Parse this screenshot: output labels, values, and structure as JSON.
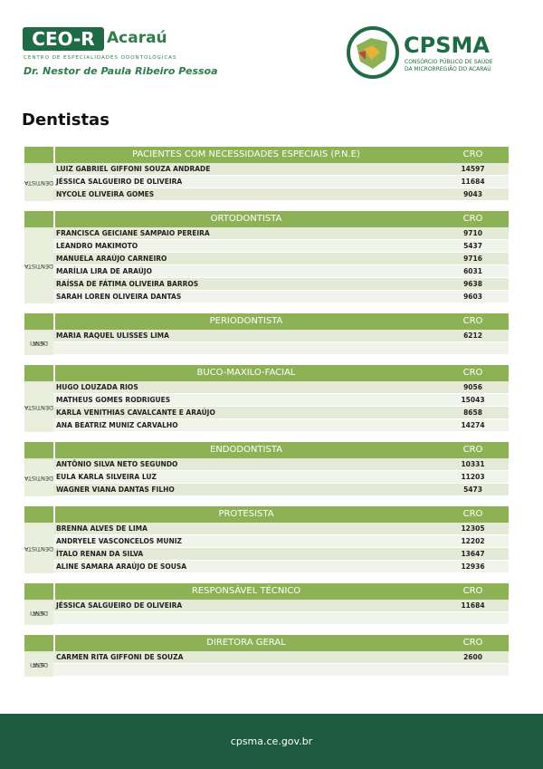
{
  "header": {
    "ceo_box": "CEO-R",
    "ceo_city": "Acaraú",
    "ceo_sub": "CENTRO DE ESPECIALIDADES ODONTOLÓGICAS",
    "ceo_name": "Dr. Nestor de Paula Ribeiro Pessoa",
    "cpsma_title": "CPSMA",
    "cpsma_sub1": "CONSÓRCIO PÚBLICO DE SAÚDE",
    "cpsma_sub2": "DA MICRORREGIÃO DO ACARAÚ"
  },
  "page_title": "Dentistas",
  "sections": [
    {
      "title": "PACIENTES COM NECESSIDADES ESPECIAIS (P.N.E)",
      "cro": "CRO",
      "side": [
        "DENTISTA"
      ],
      "rows": [
        {
          "name": "LUIZ GABRIEL GIFFONI SOUZA ANDRADE",
          "cro": 14597
        },
        {
          "name": "JÉSSICA SALGUEIRO DE OLIVEIRA",
          "cro": 11684
        },
        {
          "name": "NYCOLE OLIVEIRA GOMES",
          "cro": 9043
        }
      ]
    },
    {
      "title": "ORTODONTISTA",
      "cro": "CRO",
      "side": [
        "DENTISTA"
      ],
      "rows": [
        {
          "name": "FRANCISCA GEICIANE SAMPAIO PEREIRA",
          "cro": 9710
        },
        {
          "name": "LEANDRO MAKIMOTO",
          "cro": 5437
        },
        {
          "name": "MANUELA ARAÚJO CARNEIRO",
          "cro": 9716
        },
        {
          "name": "MARÍLIA LIRA DE ARAÚJO",
          "cro": 6031
        },
        {
          "name": "RAÍSSA DE FÁTIMA OLIVEIRA BARROS",
          "cro": 9638
        },
        {
          "name": "SARAH LOREN OLIVEIRA DANTAS",
          "cro": 9603
        }
      ]
    },
    {
      "title": "PERIODONTISTA",
      "cro": "CRO",
      "side": [
        "DENTI",
        "STA"
      ],
      "rows": [
        {
          "name": "MARIA RAQUEL ULISSES LIMA",
          "cro": 6212
        }
      ]
    },
    {
      "title": "BUCO-MAXILO-FACIAL",
      "cro": "CRO",
      "side": [
        "DENTISTA"
      ],
      "rows": [
        {
          "name": "HUGO LOUZADA RIOS",
          "cro": 9056
        },
        {
          "name": "MATHEUS GOMES RODRIGUES",
          "cro": 15043
        },
        {
          "name": "KARLA VENITHIAS CAVALCANTE E ARAÚJO",
          "cro": 8658
        },
        {
          "name": "ANA BEATRIZ MUNIZ CARVALHO",
          "cro": 14274
        }
      ]
    },
    {
      "title": "ENDODONTISTA",
      "cro": "CRO",
      "side": [
        "DENTISTA"
      ],
      "rows": [
        {
          "name": "ANTÔNIO SILVA NETO SEGUNDO",
          "cro": 10331
        },
        {
          "name": "EULA KARLA SILVEIRA LUZ",
          "cro": 11203
        },
        {
          "name": "WAGNER VIANA DANTAS FILHO",
          "cro": 5473
        }
      ]
    },
    {
      "title": "PROTESISTA",
      "cro": "CRO",
      "side": [
        "DENTISTA"
      ],
      "rows": [
        {
          "name": "BRENNA ALVES DE LIMA",
          "cro": 12305
        },
        {
          "name": "ANDRYELE VASCONCELOS MUNIZ",
          "cro": 12202
        },
        {
          "name": "ÍTALO RENAN DA SILVA",
          "cro": 13647
        },
        {
          "name": "ALINE SAMARA ARAÚJO DE SOUSA",
          "cro": 12936
        }
      ]
    },
    {
      "title": "RESPONSÁVEL TÉCNICO",
      "cro": "CRO",
      "side": [
        "DENTI",
        "STA"
      ],
      "rows": [
        {
          "name": "JÉSSICA SALGUEIRO DE OLIVEIRA",
          "cro": 11684
        }
      ]
    },
    {
      "title": "DIRETORA GERAL",
      "cro": "CRO",
      "side": [
        "DENTI",
        "STA"
      ],
      "rows": [
        {
          "name": "CARMEN RITA GIFFONI DE SOUZA",
          "cro": 2600
        }
      ]
    }
  ],
  "footer": {
    "url": "cpsma.ce.gov.br"
  }
}
